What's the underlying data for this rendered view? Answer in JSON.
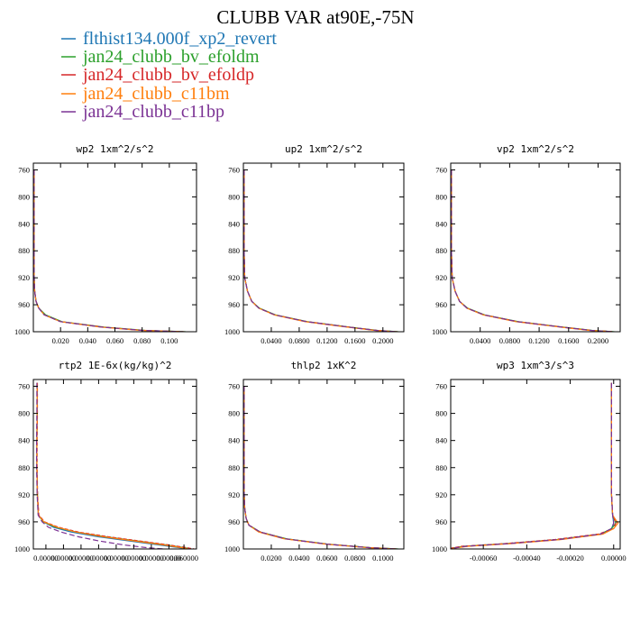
{
  "figure": {
    "title": "CLUBB VAR at90E,-75N"
  },
  "legend": [
    {
      "label": "flthist134.000f_xp2_revert",
      "color": "#1f77b4"
    },
    {
      "label": "jan24_clubb_bv_efoldm",
      "color": "#2ca02c"
    },
    {
      "label": "jan24_clubb_bv_efoldp",
      "color": "#d62728"
    },
    {
      "label": "jan24_clubb_c11bm",
      "color": "#ff7f0e"
    },
    {
      "label": "jan24_clubb_c11bp",
      "color": "#7b3294"
    }
  ],
  "chart_data": [
    {
      "type": "line",
      "title": "wp2  1xm^2/s^2",
      "xlim": [
        0.0,
        0.12
      ],
      "ylim": [
        1000,
        750
      ],
      "x_ticks": [
        "0.020",
        "0.040",
        "0.060",
        "0.080",
        "0.100"
      ],
      "x_tick_values": [
        0.02,
        0.04,
        0.06,
        0.08,
        0.1
      ],
      "y_ticks": [
        "760",
        "800",
        "840",
        "880",
        "920",
        "960",
        "1000"
      ],
      "y": [
        760,
        800,
        840,
        880,
        920,
        940,
        955,
        965,
        975,
        985,
        993,
        998,
        1000
      ],
      "series": [
        {
          "x": [
            0.0005,
            0.0005,
            0.0005,
            0.0005,
            0.0006,
            0.001,
            0.002,
            0.004,
            0.008,
            0.02,
            0.05,
            0.08,
            0.11
          ]
        },
        {
          "x": [
            0.0005,
            0.0005,
            0.0005,
            0.0005,
            0.0006,
            0.001,
            0.002,
            0.004,
            0.009,
            0.021,
            0.052,
            0.082,
            0.112
          ]
        },
        {
          "x": [
            0.0005,
            0.0005,
            0.0005,
            0.0005,
            0.0006,
            0.001,
            0.002,
            0.004,
            0.008,
            0.02,
            0.051,
            0.081,
            0.111
          ]
        },
        {
          "x": [
            0.0005,
            0.0005,
            0.0005,
            0.0005,
            0.0006,
            0.001,
            0.002,
            0.004,
            0.008,
            0.02,
            0.049,
            0.079,
            0.109
          ]
        },
        {
          "x": [
            0.0005,
            0.0005,
            0.0005,
            0.0005,
            0.0006,
            0.001,
            0.002,
            0.004,
            0.008,
            0.02,
            0.05,
            0.08,
            0.11
          ]
        }
      ]
    },
    {
      "type": "line",
      "title": "up2  1xm^2/s^2",
      "xlim": [
        0.0,
        0.23
      ],
      "ylim": [
        1000,
        750
      ],
      "x_ticks": [
        "0.0400",
        "0.0800",
        "0.1200",
        "0.1600",
        "0.2000"
      ],
      "x_tick_values": [
        0.04,
        0.08,
        0.12,
        0.16,
        0.2
      ],
      "y_ticks": [
        "760",
        "800",
        "840",
        "880",
        "920",
        "960",
        "1000"
      ],
      "y": [
        760,
        800,
        840,
        880,
        920,
        940,
        955,
        965,
        975,
        985,
        993,
        998,
        1000
      ],
      "series": [
        {
          "x": [
            0.001,
            0.001,
            0.001,
            0.001,
            0.002,
            0.006,
            0.012,
            0.022,
            0.045,
            0.09,
            0.15,
            0.19,
            0.22
          ]
        },
        {
          "x": [
            0.001,
            0.001,
            0.001,
            0.001,
            0.002,
            0.006,
            0.012,
            0.023,
            0.046,
            0.092,
            0.152,
            0.192,
            0.222
          ]
        },
        {
          "x": [
            0.001,
            0.001,
            0.001,
            0.001,
            0.002,
            0.006,
            0.012,
            0.022,
            0.045,
            0.091,
            0.151,
            0.191,
            0.221
          ]
        },
        {
          "x": [
            0.001,
            0.001,
            0.001,
            0.001,
            0.002,
            0.006,
            0.012,
            0.022,
            0.044,
            0.088,
            0.148,
            0.188,
            0.218
          ]
        },
        {
          "x": [
            0.001,
            0.001,
            0.001,
            0.001,
            0.002,
            0.006,
            0.012,
            0.022,
            0.045,
            0.09,
            0.15,
            0.19,
            0.22
          ]
        }
      ]
    },
    {
      "type": "line",
      "title": "vp2  1xm^2/s^2",
      "xlim": [
        0.0,
        0.23
      ],
      "ylim": [
        1000,
        750
      ],
      "x_ticks": [
        "0.0400",
        "0.0800",
        "0.1200",
        "0.1600",
        "0.2000"
      ],
      "x_tick_values": [
        0.04,
        0.08,
        0.12,
        0.16,
        0.2
      ],
      "y_ticks": [
        "760",
        "800",
        "840",
        "880",
        "920",
        "960",
        "1000"
      ],
      "y": [
        760,
        800,
        840,
        880,
        920,
        940,
        955,
        965,
        975,
        985,
        993,
        998,
        1000
      ],
      "series": [
        {
          "x": [
            0.001,
            0.001,
            0.001,
            0.001,
            0.002,
            0.006,
            0.012,
            0.022,
            0.045,
            0.09,
            0.15,
            0.19,
            0.22
          ]
        },
        {
          "x": [
            0.001,
            0.001,
            0.001,
            0.001,
            0.002,
            0.006,
            0.012,
            0.023,
            0.046,
            0.092,
            0.152,
            0.192,
            0.222
          ]
        },
        {
          "x": [
            0.001,
            0.001,
            0.001,
            0.001,
            0.002,
            0.006,
            0.012,
            0.022,
            0.045,
            0.091,
            0.151,
            0.191,
            0.221
          ]
        },
        {
          "x": [
            0.001,
            0.001,
            0.001,
            0.001,
            0.002,
            0.006,
            0.012,
            0.022,
            0.044,
            0.088,
            0.148,
            0.188,
            0.218
          ]
        },
        {
          "x": [
            0.001,
            0.001,
            0.001,
            0.001,
            0.002,
            0.006,
            0.012,
            0.022,
            0.045,
            0.09,
            0.15,
            0.19,
            0.22
          ]
        }
      ]
    },
    {
      "type": "line",
      "title": "rtp2  1E-6x(kg/kg)^2",
      "xlim": [
        0.0,
        0.065
      ],
      "ylim": [
        1000,
        750
      ],
      "x_ticks": [
        "0.00000",
        "0.00000",
        "0.00000",
        "0.00000",
        "0.00000",
        "0.00000",
        "0.00000",
        "0.00000",
        "0.060000"
      ],
      "x_tick_values": [
        0.005,
        0.012,
        0.019,
        0.026,
        0.033,
        0.04,
        0.047,
        0.054,
        0.06
      ],
      "y_ticks": [
        "760",
        "800",
        "840",
        "880",
        "920",
        "960",
        "1000"
      ],
      "y": [
        755,
        800,
        840,
        880,
        920,
        950,
        960,
        968,
        975,
        982,
        988,
        994,
        998,
        1000
      ],
      "series": [
        {
          "x": [
            0.0015,
            0.0015,
            0.0014,
            0.0014,
            0.0016,
            0.002,
            0.004,
            0.008,
            0.015,
            0.026,
            0.038,
            0.05,
            0.058,
            0.062
          ]
        },
        {
          "x": [
            0.0015,
            0.0015,
            0.0014,
            0.0014,
            0.0016,
            0.002,
            0.004,
            0.009,
            0.017,
            0.029,
            0.041,
            0.053,
            0.06,
            0.063
          ]
        },
        {
          "x": [
            0.0016,
            0.0016,
            0.0015,
            0.0015,
            0.0017,
            0.0022,
            0.0045,
            0.01,
            0.018,
            0.03,
            0.042,
            0.054,
            0.061,
            0.064
          ]
        },
        {
          "x": [
            0.0015,
            0.0015,
            0.0014,
            0.0014,
            0.0016,
            0.002,
            0.0042,
            0.0095,
            0.017,
            0.028,
            0.04,
            0.052,
            0.059,
            0.062
          ]
        },
        {
          "x": [
            0.0014,
            0.0014,
            0.0013,
            0.0013,
            0.0015,
            0.0019,
            0.0035,
            0.006,
            0.011,
            0.018,
            0.026,
            0.036,
            0.045,
            0.052
          ]
        }
      ]
    },
    {
      "type": "line",
      "title": "thlp2  1xK^2",
      "xlim": [
        0.0,
        0.115
      ],
      "ylim": [
        1000,
        750
      ],
      "x_ticks": [
        "0.0200",
        "0.0400",
        "0.0600",
        "0.0800",
        "0.1000"
      ],
      "x_tick_values": [
        0.02,
        0.04,
        0.06,
        0.08,
        0.1
      ],
      "y_ticks": [
        "760",
        "800",
        "840",
        "880",
        "920",
        "960",
        "1000"
      ],
      "y": [
        760,
        800,
        840,
        880,
        920,
        940,
        955,
        965,
        975,
        985,
        993,
        998,
        1000
      ],
      "series": [
        {
          "x": [
            0.0005,
            0.0005,
            0.0005,
            0.0005,
            0.0006,
            0.001,
            0.002,
            0.004,
            0.012,
            0.03,
            0.06,
            0.09,
            0.11
          ]
        },
        {
          "x": [
            0.0005,
            0.0005,
            0.0005,
            0.0005,
            0.0006,
            0.001,
            0.002,
            0.004,
            0.012,
            0.031,
            0.061,
            0.091,
            0.111
          ]
        },
        {
          "x": [
            0.0005,
            0.0005,
            0.0005,
            0.0005,
            0.0006,
            0.001,
            0.002,
            0.004,
            0.012,
            0.03,
            0.06,
            0.09,
            0.11
          ]
        },
        {
          "x": [
            0.0005,
            0.0005,
            0.0005,
            0.0005,
            0.0006,
            0.001,
            0.002,
            0.004,
            0.011,
            0.029,
            0.059,
            0.089,
            0.109
          ]
        },
        {
          "x": [
            0.0005,
            0.0005,
            0.0005,
            0.0005,
            0.0006,
            0.001,
            0.002,
            0.004,
            0.012,
            0.03,
            0.06,
            0.09,
            0.11
          ]
        }
      ]
    },
    {
      "type": "line",
      "title": "wp3  1xm^3/s^3",
      "xlim": [
        -0.00075,
        3e-05
      ],
      "ylim": [
        1000,
        750
      ],
      "x_ticks": [
        "-0.00060",
        "-0.00040",
        "-0.00020",
        "0.00000"
      ],
      "x_tick_values": [
        -0.0006,
        -0.0004,
        -0.0002,
        0.0
      ],
      "y_ticks": [
        "760",
        "800",
        "840",
        "880",
        "920",
        "960",
        "1000"
      ],
      "y": [
        755,
        800,
        840,
        880,
        920,
        950,
        962,
        970,
        978,
        986,
        992,
        996,
        999
      ],
      "series": [
        {
          "x": [
            -1e-05,
            -1e-05,
            -1e-05,
            -1e-05,
            -1e-05,
            -5e-06,
            0.0,
            -1e-05,
            -6e-05,
            -0.00025,
            -0.00048,
            -0.00068,
            -0.00075
          ]
        },
        {
          "x": [
            -1e-05,
            -1e-05,
            -1e-05,
            -1e-05,
            -1e-05,
            -5e-06,
            1e-05,
            -1e-05,
            -6e-05,
            -0.00026,
            -0.00049,
            -0.00069,
            -0.00075
          ]
        },
        {
          "x": [
            -1e-05,
            -1e-05,
            -1e-05,
            -1e-05,
            -1e-05,
            -5e-06,
            1e-05,
            0.0,
            -7e-05,
            -0.00027,
            -0.0005,
            -0.0007,
            -0.00075
          ]
        },
        {
          "x": [
            -1e-05,
            -1e-05,
            -1e-05,
            -1e-05,
            -1e-05,
            -5e-06,
            2e-05,
            0.0,
            -5e-05,
            -0.00024,
            -0.00047,
            -0.00067,
            -0.00074
          ]
        },
        {
          "x": [
            -1e-05,
            -1e-05,
            -1e-05,
            -1e-05,
            -1e-05,
            -5e-06,
            0.0,
            -1e-05,
            -6e-05,
            -0.00025,
            -0.00048,
            -0.00068,
            -0.00074
          ]
        }
      ]
    }
  ]
}
